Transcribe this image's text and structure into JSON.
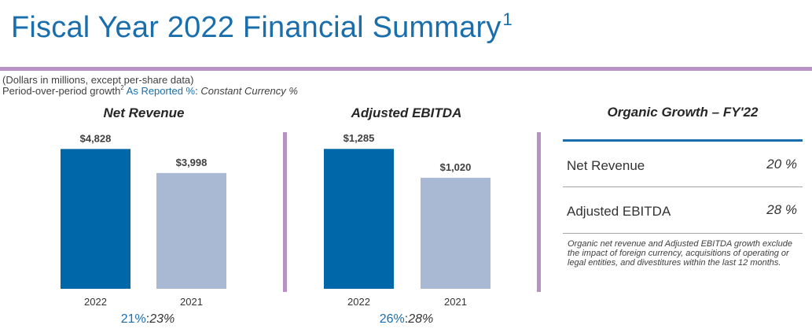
{
  "header": {
    "title": "Fiscal Year 2022 Financial Summary",
    "title_footnote": "1"
  },
  "notes": {
    "units": "(Dollars in millions, except per-share data)",
    "growth_prefix": "Period-over-period growth",
    "growth_footnote": "2",
    "as_reported_label": "As Reported %",
    "colon": ":",
    "constant_currency_label": "Constant Currency %"
  },
  "chart_data": [
    {
      "type": "bar",
      "title": "Net Revenue",
      "categories": [
        "2022",
        "2021"
      ],
      "values": [
        4828,
        3998
      ],
      "value_labels": [
        "$4,828",
        "$3,998"
      ],
      "ylim": [
        0,
        5000
      ],
      "colors": [
        "#0068a8",
        "#a9b9d3"
      ],
      "grid": false,
      "growth": {
        "as_reported": "21%",
        "separator": ":",
        "constant_currency": "23%"
      }
    },
    {
      "type": "bar",
      "title": "Adjusted EBITDA",
      "categories": [
        "2022",
        "2021"
      ],
      "values": [
        1285,
        1020
      ],
      "value_labels": [
        "$1,285",
        "$1,020"
      ],
      "ylim": [
        0,
        1330
      ],
      "colors": [
        "#0068a8",
        "#a9b9d3"
      ],
      "grid": false,
      "growth": {
        "as_reported": "26%",
        "separator": ":",
        "constant_currency": "28%"
      }
    }
  ],
  "organic": {
    "title": "Organic Growth – FY'22",
    "rows": [
      {
        "label": "Net Revenue",
        "value": "20 %"
      },
      {
        "label": "Adjusted EBITDA",
        "value": "28 %"
      }
    ],
    "footnote": "Organic net revenue and Adjusted EBITDA growth exclude the impact of foreign currency, acquisitions of operating or legal entities, and divestitures within the last 12 months."
  },
  "colors": {
    "accent_blue": "#1a6eac",
    "rule_purple": "#b892c3",
    "bar_current": "#0068a8",
    "bar_prior": "#a9b9d3"
  }
}
